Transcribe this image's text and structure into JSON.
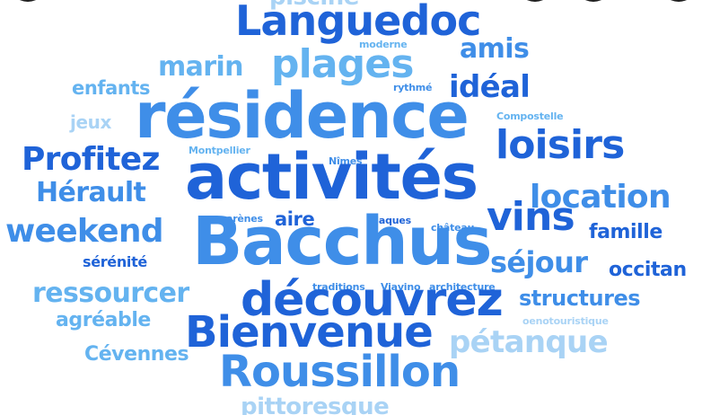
{
  "colors": {
    "dark": "#1f63d8",
    "mid": "#3f8ee8",
    "light": "#64b3f0",
    "pale": "#a9d3f5",
    "background": "#ffffff"
  },
  "words": {
    "piscine": "piscine",
    "languedoc": "Languedoc",
    "moderne": "moderne",
    "amis": "amis",
    "marin": "marin",
    "plages": "plages",
    "enfants": "enfants",
    "rythme": "rythmé",
    "ideal": "idéal",
    "jeux": "jeux",
    "residence": "résidence",
    "compostelle": "Compostelle",
    "loisirs": "loisirs",
    "profitez": "Profitez",
    "montpellier": "Montpellier",
    "nimes": "Nîmes",
    "activites": "activités",
    "herault": "Hérault",
    "location": "location",
    "arenes": "arènes",
    "aire": "aire",
    "jaques": "Jaques",
    "chateau": "château",
    "vins": "vins",
    "famille": "famille",
    "weekend": "weekend",
    "bacchus": "Bacchus",
    "serenite": "sérénité",
    "sejour": "séjour",
    "occitan": "occitan",
    "ressourcer": "ressourcer",
    "traditions": "traditions",
    "viavino": "Viavino",
    "architecture": "architecture",
    "structures": "structures",
    "decouvrez": "découvrez",
    "agreable": "agréable",
    "oenotouristique": "oenotouristique",
    "bienvenue": "Bienvenue",
    "petanque": "pétanque",
    "cevennes": "Cévennes",
    "roussillon": "Roussillon",
    "pittoresque": "pittoresque"
  }
}
